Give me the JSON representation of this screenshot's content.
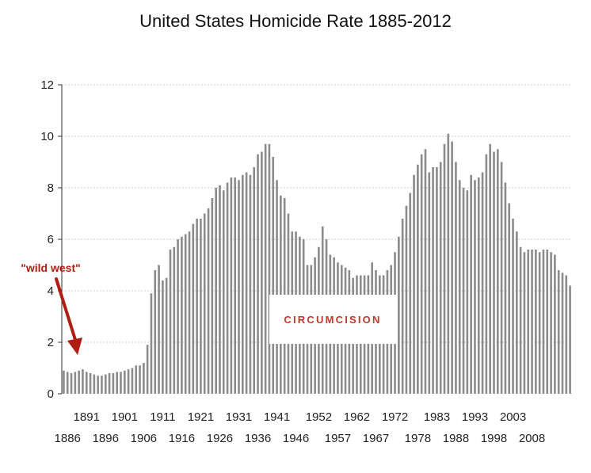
{
  "chart_data": {
    "type": "bar",
    "title": "United States Homicide Rate 1885-2012",
    "xlabel": "",
    "ylabel": "",
    "ylim": [
      0,
      12
    ],
    "yticks": [
      0,
      2,
      4,
      6,
      8,
      10,
      12
    ],
    "grid": true,
    "legend": "none",
    "bar_color": "#8c8c8c",
    "x_range": [
      1885,
      2012
    ],
    "xtick_labels_row1": [
      1891,
      1901,
      1911,
      1921,
      1931,
      1941,
      1952,
      1962,
      1972,
      1983,
      1993,
      2003
    ],
    "xtick_labels_row2": [
      1886,
      1896,
      1906,
      1916,
      1926,
      1936,
      1946,
      1957,
      1967,
      1978,
      1988,
      1998,
      2008
    ],
    "values": [
      0.9,
      0.85,
      0.8,
      0.85,
      0.9,
      0.95,
      0.85,
      0.8,
      0.75,
      0.7,
      0.7,
      0.75,
      0.8,
      0.8,
      0.85,
      0.85,
      0.9,
      0.95,
      1.0,
      1.1,
      1.1,
      1.2,
      1.9,
      3.9,
      4.8,
      5.0,
      4.4,
      4.5,
      5.6,
      5.7,
      6.0,
      6.1,
      6.2,
      6.3,
      6.6,
      6.8,
      6.8,
      7.0,
      7.2,
      7.6,
      8.0,
      8.1,
      7.9,
      8.2,
      8.4,
      8.4,
      8.3,
      8.5,
      8.6,
      8.5,
      8.8,
      9.3,
      9.4,
      9.7,
      9.7,
      9.2,
      8.3,
      7.7,
      7.6,
      7.0,
      6.3,
      6.3,
      6.1,
      6.0,
      5.0,
      5.0,
      5.3,
      5.7,
      6.5,
      6.0,
      5.4,
      5.3,
      5.1,
      5.0,
      4.9,
      4.8,
      4.5,
      4.6,
      4.6,
      4.6,
      4.6,
      5.1,
      4.8,
      4.6,
      4.6,
      4.8,
      5.0,
      5.5,
      6.1,
      6.8,
      7.3,
      7.8,
      8.5,
      8.9,
      9.3,
      9.5,
      8.6,
      8.8,
      8.8,
      9.0,
      9.7,
      10.1,
      9.8,
      9.0,
      8.3,
      8.0,
      7.9,
      8.5,
      8.3,
      8.4,
      8.6,
      9.3,
      9.7,
      9.4,
      9.5,
      9.0,
      8.2,
      7.4,
      6.8,
      6.3,
      5.7,
      5.5,
      5.6,
      5.6,
      5.6,
      5.5,
      5.6,
      5.6,
      5.5,
      5.4,
      4.8,
      4.7,
      4.6,
      4.2
    ]
  },
  "annotations": {
    "wild_west": "\"wild west\"",
    "circumcision": "CIRCUMCISION"
  },
  "colors": {
    "annotation_red": "#b01d12",
    "grid": "#cfcfcf"
  }
}
